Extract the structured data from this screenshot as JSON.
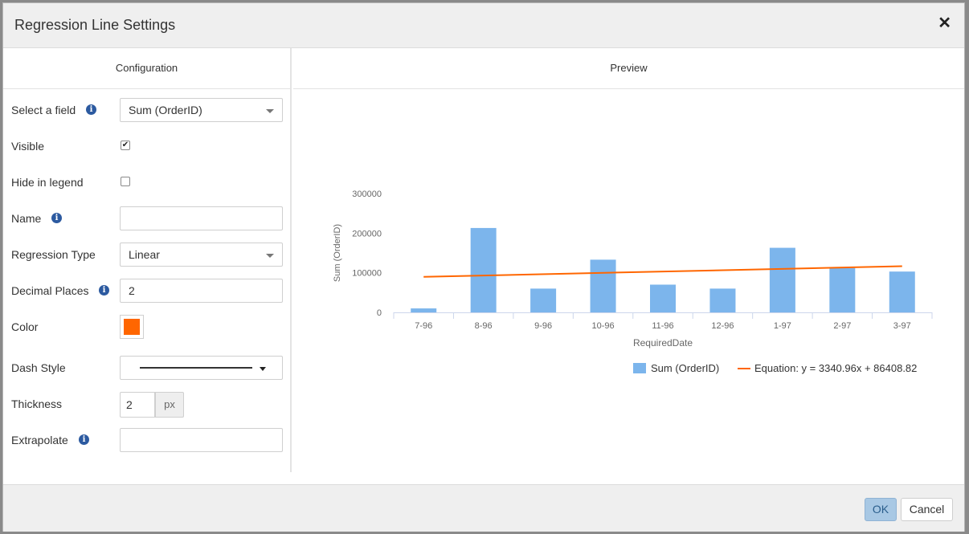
{
  "dialog": {
    "title": "Regression Line Settings",
    "close_glyph": "✕"
  },
  "config": {
    "heading": "Configuration",
    "select_field": {
      "label": "Select a field",
      "value": "Sum (OrderID)"
    },
    "visible": {
      "label": "Visible",
      "checked": true
    },
    "hide_in_legend": {
      "label": "Hide in legend",
      "checked": false
    },
    "name": {
      "label": "Name",
      "value": ""
    },
    "regression_type": {
      "label": "Regression Type",
      "value": "Linear"
    },
    "decimal_places": {
      "label": "Decimal Places",
      "value": "2"
    },
    "color": {
      "label": "Color",
      "value": "#ff6600"
    },
    "dash_style": {
      "label": "Dash Style",
      "value": "Solid"
    },
    "thickness": {
      "label": "Thickness",
      "value": "2",
      "unit": "px"
    },
    "extrapolate": {
      "label": "Extrapolate",
      "value": ""
    }
  },
  "preview": {
    "heading": "Preview"
  },
  "chart_data": {
    "type": "bar",
    "categories": [
      "7-96",
      "8-96",
      "9-96",
      "10-96",
      "11-96",
      "12-96",
      "1-97",
      "2-97",
      "3-97"
    ],
    "series": [
      {
        "name": "Sum (OrderID)",
        "values": [
          10000,
          213000,
          60000,
          133000,
          70000,
          60000,
          163000,
          112000,
          103000
        ],
        "color": "#7cb5ec"
      }
    ],
    "regression": {
      "name": "Equation: y = 3340.96x + 86408.82",
      "slope": 3340.96,
      "intercept": 86408.82,
      "color": "#ff6600"
    },
    "xlabel": "RequiredDate",
    "ylabel": "Sum (OrderID)",
    "ylim": [
      0,
      300000
    ],
    "yticks": [
      0,
      100000,
      200000,
      300000
    ],
    "ytick_labels": [
      "0",
      "100000",
      "200000",
      "300000"
    ],
    "grid": false,
    "legend": "bottom-center"
  },
  "footer": {
    "ok_label": "OK",
    "cancel_label": "Cancel"
  }
}
